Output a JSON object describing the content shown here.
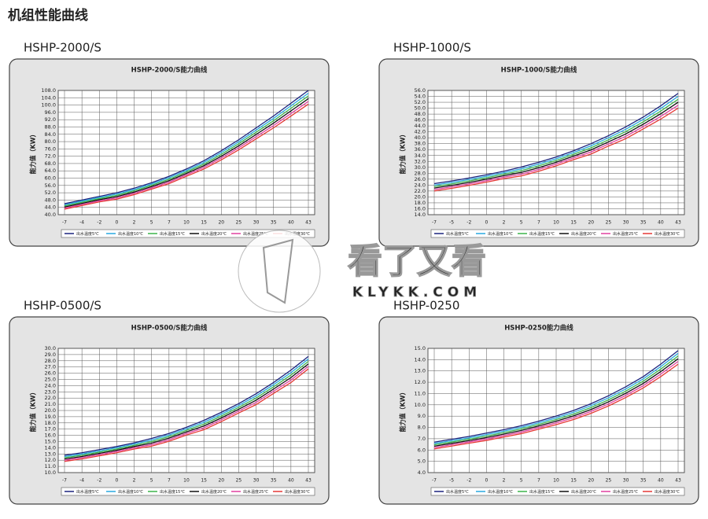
{
  "page": {
    "title": "机组性能曲线",
    "watermark": "看了又看",
    "watermark_url": "KLYKK.COM"
  },
  "chart_data": [
    {
      "type": "line",
      "heading": "HSHP-2000/S",
      "title": "HSHP-2000/S能力曲线",
      "y_label": "能力值（KW）",
      "categories": [
        "-7",
        "-4",
        "-2",
        "0",
        "2",
        "5",
        "7",
        "10",
        "15",
        "20",
        "25",
        "30",
        "35",
        "40",
        "43"
      ],
      "ylim": [
        40,
        108
      ],
      "yticks": [
        {
          "value": 40,
          "label": "40.0"
        },
        {
          "value": 44,
          "label": "44.0"
        },
        {
          "value": 48,
          "label": "48.0"
        },
        {
          "value": 52,
          "label": "52.0"
        },
        {
          "value": 56,
          "label": "56.0"
        },
        {
          "value": 60,
          "label": "60.0"
        },
        {
          "value": 64,
          "label": "64.0"
        },
        {
          "value": 68,
          "label": "68.0"
        },
        {
          "value": 72,
          "label": "72.0"
        },
        {
          "value": 76,
          "label": "76.0"
        },
        {
          "value": 80,
          "label": "80.0"
        },
        {
          "value": 84,
          "label": "84.0"
        },
        {
          "value": 88,
          "label": "88.0"
        },
        {
          "value": 92,
          "label": "92.0"
        },
        {
          "value": 96,
          "label": "96.0"
        },
        {
          "value": 100,
          "label": "100.0"
        },
        {
          "value": 104,
          "label": "104.0"
        },
        {
          "value": 108,
          "label": "108.0"
        }
      ],
      "grid": true,
      "series": [
        {
          "name": "出水温度5℃",
          "color": "#1a237e",
          "values": [
            46,
            48,
            50,
            52,
            54.5,
            57.5,
            61,
            65,
            69.5,
            75,
            81,
            87.5,
            94,
            101,
            108
          ]
        },
        {
          "name": "出水温度10℃",
          "color": "#29a8e0",
          "values": [
            45.4,
            47.4,
            49.4,
            51.3,
            53.8,
            56.8,
            60.2,
            64.2,
            68.6,
            74,
            79.9,
            86.3,
            92.7,
            99.6,
            106.5
          ]
        },
        {
          "name": "出水温度15℃",
          "color": "#3cb44b",
          "values": [
            44.8,
            46.8,
            48.8,
            50.6,
            53.1,
            56.1,
            59.4,
            63.4,
            67.7,
            73,
            78.8,
            85.1,
            91.4,
            98.2,
            105
          ]
        },
        {
          "name": "出水温度20℃",
          "color": "#111111",
          "values": [
            44.2,
            46.2,
            48.2,
            49.9,
            52.4,
            55.4,
            58.6,
            62.6,
            66.8,
            72,
            77.7,
            83.9,
            90.1,
            96.8,
            103.5
          ]
        },
        {
          "name": "出水温度25℃",
          "color": "#e040a0",
          "values": [
            43.6,
            45.6,
            47.6,
            49.2,
            51.7,
            54.7,
            57.8,
            61.8,
            65.9,
            71,
            76.6,
            82.7,
            88.8,
            95.4,
            102
          ]
        },
        {
          "name": "出水温度30℃",
          "color": "#e53935",
          "values": [
            43,
            45,
            47,
            48.5,
            51,
            54,
            57,
            61,
            65,
            70,
            75.5,
            81.5,
            87.5,
            94,
            100.5
          ]
        }
      ]
    },
    {
      "type": "line",
      "heading": "HSHP-1000/S",
      "title": "HSHP-1000/S能力曲线",
      "y_label": "能力值（KW）",
      "categories": [
        "-7",
        "-5",
        "-2",
        "0",
        "2",
        "5",
        "7",
        "10",
        "15",
        "20",
        "25",
        "30",
        "35",
        "40",
        "43"
      ],
      "ylim": [
        14,
        56
      ],
      "yticks": [
        {
          "value": 14,
          "label": "14.0"
        },
        {
          "value": 16,
          "label": "16.0"
        },
        {
          "value": 18,
          "label": "18.0"
        },
        {
          "value": 20,
          "label": "20.0"
        },
        {
          "value": 22,
          "label": "22.0"
        },
        {
          "value": 24,
          "label": "24.0"
        },
        {
          "value": 26,
          "label": "26.0"
        },
        {
          "value": 28,
          "label": "28.0"
        },
        {
          "value": 30,
          "label": "30.0"
        },
        {
          "value": 32,
          "label": "32.0"
        },
        {
          "value": 34,
          "label": "34.0"
        },
        {
          "value": 36,
          "label": "36.0"
        },
        {
          "value": 38,
          "label": "38.0"
        },
        {
          "value": 40,
          "label": "40.0"
        },
        {
          "value": 42,
          "label": "42.0"
        },
        {
          "value": 44,
          "label": "44.0"
        },
        {
          "value": 46,
          "label": "46.0"
        },
        {
          "value": 48,
          "label": "48.0"
        },
        {
          "value": 50,
          "label": "50.0"
        },
        {
          "value": 52,
          "label": "52.0"
        },
        {
          "value": 54,
          "label": "54.0"
        },
        {
          "value": 56,
          "label": "56.0"
        }
      ],
      "grid": true,
      "series": [
        {
          "name": "出水温度5℃",
          "color": "#1a237e",
          "values": [
            24.5,
            25.4,
            26.4,
            27.5,
            28.7,
            30.1,
            31.7,
            33.5,
            35.6,
            38,
            40.7,
            43.7,
            47,
            50.8,
            55
          ]
        },
        {
          "name": "出水温度10℃",
          "color": "#29a8e0",
          "values": [
            24,
            24.9,
            25.9,
            27,
            28.2,
            29.5,
            31.1,
            32.9,
            35,
            37.3,
            40,
            42.9,
            46.2,
            49.9,
            54
          ]
        },
        {
          "name": "出水温度15℃",
          "color": "#3cb44b",
          "values": [
            23.5,
            24.4,
            25.4,
            26.5,
            27.7,
            28.9,
            30.5,
            32.3,
            34.4,
            36.6,
            39.3,
            42.1,
            45.4,
            49,
            53
          ]
        },
        {
          "name": "出水温度20℃",
          "color": "#111111",
          "values": [
            23,
            23.9,
            24.9,
            26,
            27.2,
            28.3,
            29.9,
            31.7,
            33.8,
            35.9,
            38.6,
            41.3,
            44.6,
            48.1,
            52
          ]
        },
        {
          "name": "出水温度25℃",
          "color": "#e040a0",
          "values": [
            22.5,
            23.4,
            24.4,
            25.5,
            26.7,
            27.7,
            29.3,
            31.1,
            33.2,
            35.2,
            37.9,
            40.5,
            43.8,
            47.2,
            51
          ]
        },
        {
          "name": "出水温度30℃",
          "color": "#e53935",
          "values": [
            22,
            22.9,
            23.9,
            25,
            26.2,
            27.1,
            28.7,
            30.5,
            32.6,
            34.5,
            37.2,
            39.7,
            43,
            46.3,
            50
          ]
        }
      ]
    },
    {
      "type": "line",
      "heading": "HSHP-0500/S",
      "title": "HSHP-0500/S能力曲线",
      "y_label": "能力值（KW）",
      "categories": [
        "-7",
        "-4",
        "-2",
        "0",
        "2",
        "5",
        "7",
        "10",
        "15",
        "20",
        "25",
        "30",
        "35",
        "40",
        "43"
      ],
      "ylim": [
        10,
        30
      ],
      "yticks": [
        {
          "value": 10,
          "label": "10.0"
        },
        {
          "value": 11,
          "label": "11.0"
        },
        {
          "value": 12,
          "label": "12.0"
        },
        {
          "value": 13,
          "label": "13.0"
        },
        {
          "value": 14,
          "label": "14.0"
        },
        {
          "value": 15,
          "label": "15.0"
        },
        {
          "value": 16,
          "label": "16.0"
        },
        {
          "value": 17,
          "label": "17.0"
        },
        {
          "value": 18,
          "label": "18.0"
        },
        {
          "value": 19,
          "label": "19.0"
        },
        {
          "value": 20,
          "label": "20.0"
        },
        {
          "value": 21,
          "label": "21.0"
        },
        {
          "value": 22,
          "label": "22.0"
        },
        {
          "value": 23,
          "label": "23.0"
        },
        {
          "value": 24,
          "label": "24.0"
        },
        {
          "value": 25,
          "label": "25.0"
        },
        {
          "value": 26,
          "label": "26.0"
        },
        {
          "value": 27,
          "label": "27.0"
        },
        {
          "value": 28,
          "label": "28.0"
        },
        {
          "value": 29,
          "label": "29.0"
        },
        {
          "value": 30,
          "label": "30.0"
        }
      ],
      "grid": true,
      "series": [
        {
          "name": "出水温度5℃",
          "color": "#1a237e",
          "values": [
            12.8,
            13.2,
            13.7,
            14.2,
            14.8,
            15.5,
            16.3,
            17.3,
            18.4,
            19.7,
            21.1,
            22.7,
            24.5,
            26.5,
            28.7
          ]
        },
        {
          "name": "出水温度10℃",
          "color": "#29a8e0",
          "values": [
            12.6,
            13,
            13.5,
            14,
            14.6,
            15.25,
            16.05,
            17.05,
            18.1,
            19.4,
            20.8,
            22.35,
            24.15,
            26.1,
            28.3
          ]
        },
        {
          "name": "出水温度15℃",
          "color": "#3cb44b",
          "values": [
            12.4,
            12.8,
            13.3,
            13.8,
            14.4,
            15,
            15.8,
            16.8,
            17.8,
            19.1,
            20.5,
            22,
            23.8,
            25.7,
            27.9
          ]
        },
        {
          "name": "出水温度20℃",
          "color": "#111111",
          "values": [
            12.2,
            12.6,
            13.1,
            13.6,
            14.2,
            14.75,
            15.55,
            16.55,
            17.5,
            18.8,
            20.2,
            21.65,
            23.45,
            25.3,
            27.5
          ]
        },
        {
          "name": "出水温度25℃",
          "color": "#e040a0",
          "values": [
            12,
            12.4,
            12.9,
            13.4,
            14,
            14.5,
            15.3,
            16.3,
            17.2,
            18.5,
            19.9,
            21.3,
            23.1,
            24.9,
            27.1
          ]
        },
        {
          "name": "出水温度30℃",
          "color": "#e53935",
          "values": [
            11.8,
            12.2,
            12.7,
            13.2,
            13.8,
            14.25,
            15.05,
            16.05,
            16.9,
            18.2,
            19.6,
            20.95,
            22.75,
            24.5,
            26.7
          ]
        }
      ]
    },
    {
      "type": "line",
      "heading": "HSHP-0250",
      "title": "HSHP-0250能力曲线",
      "y_label": "能力值（KW）",
      "categories": [
        "-7",
        "-5",
        "-2",
        "0",
        "2",
        "5",
        "7",
        "10",
        "15",
        "20",
        "25",
        "30",
        "35",
        "40",
        "43"
      ],
      "ylim": [
        4,
        15
      ],
      "yticks": [
        {
          "value": 4,
          "label": "4.0"
        },
        {
          "value": 5,
          "label": "5.0"
        },
        {
          "value": 6,
          "label": "6.0"
        },
        {
          "value": 7,
          "label": "7.0"
        },
        {
          "value": 8,
          "label": "8.0"
        },
        {
          "value": 9,
          "label": "9.0"
        },
        {
          "value": 10,
          "label": "10.0"
        },
        {
          "value": 11,
          "label": "11.0"
        },
        {
          "value": 12,
          "label": "12.0"
        },
        {
          "value": 13,
          "label": "13.0"
        },
        {
          "value": 14,
          "label": "14.0"
        },
        {
          "value": 15,
          "label": "15.0"
        }
      ],
      "grid": true,
      "series": [
        {
          "name": "出水温度5℃",
          "color": "#1a237e",
          "values": [
            6.7,
            6.95,
            7.2,
            7.5,
            7.8,
            8.15,
            8.55,
            9,
            9.5,
            10.1,
            10.8,
            11.6,
            12.5,
            13.6,
            14.8
          ]
        },
        {
          "name": "出水温度10℃",
          "color": "#29a8e0",
          "values": [
            6.58,
            6.83,
            7.08,
            7.37,
            7.67,
            8.01,
            8.41,
            8.85,
            9.34,
            9.93,
            10.62,
            11.41,
            12.3,
            13.38,
            14.56
          ]
        },
        {
          "name": "出水温度15℃",
          "color": "#3cb44b",
          "values": [
            6.46,
            6.71,
            6.96,
            7.24,
            7.54,
            7.87,
            8.27,
            8.7,
            9.18,
            9.76,
            10.44,
            11.22,
            12.1,
            13.16,
            14.32
          ]
        },
        {
          "name": "出水温度20℃",
          "color": "#111111",
          "values": [
            6.34,
            6.59,
            6.84,
            7.11,
            7.41,
            7.73,
            8.13,
            8.55,
            9.02,
            9.59,
            10.26,
            11.03,
            11.9,
            12.94,
            14.08
          ]
        },
        {
          "name": "出水温度25℃",
          "color": "#e040a0",
          "values": [
            6.22,
            6.47,
            6.72,
            6.98,
            7.28,
            7.59,
            7.99,
            8.4,
            8.86,
            9.42,
            10.08,
            10.84,
            11.7,
            12.72,
            13.84
          ]
        },
        {
          "name": "出水温度30℃",
          "color": "#e53935",
          "values": [
            6.1,
            6.35,
            6.6,
            6.85,
            7.15,
            7.45,
            7.85,
            8.25,
            8.7,
            9.25,
            9.9,
            10.65,
            11.5,
            12.5,
            13.6
          ]
        }
      ]
    }
  ]
}
